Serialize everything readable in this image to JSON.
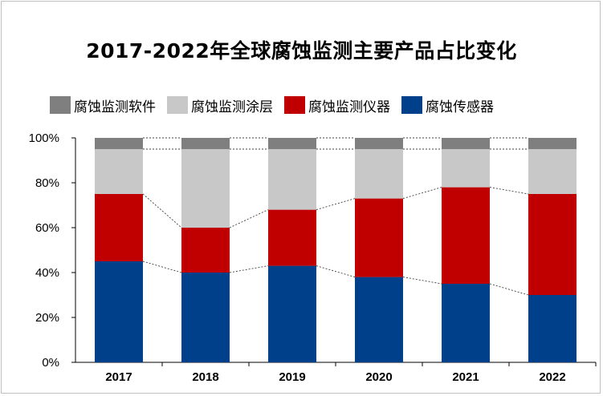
{
  "chart_data": {
    "type": "bar",
    "stacked": true,
    "percent": true,
    "title": "2017-2022年全球腐蚀监测主要产品占比变化",
    "categories": [
      "2017",
      "2018",
      "2019",
      "2020",
      "2021",
      "2022"
    ],
    "series": [
      {
        "name": "腐蚀传感器",
        "color": "#003f8a",
        "values": [
          45,
          40,
          43,
          38,
          35,
          30
        ]
      },
      {
        "name": "腐蚀监测仪器",
        "color": "#c00000",
        "values": [
          30,
          20,
          25,
          35,
          43,
          45
        ]
      },
      {
        "name": "腐蚀监测涂层",
        "color": "#c8c8c8",
        "values": [
          20,
          35,
          27,
          22,
          17,
          20
        ]
      },
      {
        "name": "腐蚀监测软件",
        "color": "#7f7f7f",
        "values": [
          5,
          5,
          5,
          5,
          5,
          5
        ]
      }
    ],
    "legend_order": [
      "腐蚀监测软件",
      "腐蚀监测涂层",
      "腐蚀监测仪器",
      "腐蚀传感器"
    ],
    "yticks": [
      "0%",
      "20%",
      "40%",
      "60%",
      "80%",
      "100%"
    ],
    "ylim": [
      0,
      100
    ],
    "legend_position": "top",
    "grid": false,
    "series_lines": true
  }
}
